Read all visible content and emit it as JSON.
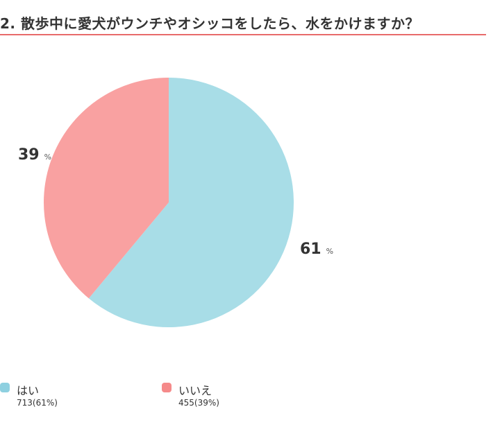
{
  "title": "2. 散歩中に愛犬がウンチやオシッコをしたら、水をかけますか？",
  "colors": {
    "accent_rule": "#e86a6a",
    "yes": "#a8dde7",
    "no": "#f9a1a1",
    "yes_swatch": "#8ed0e0",
    "no_swatch": "#f58a8a"
  },
  "labels": {
    "yes_pct": "61",
    "no_pct": "39",
    "pct_sign": "%"
  },
  "legend": [
    {
      "label": "はい",
      "value": "713(61%)"
    },
    {
      "label": "いいえ",
      "value": "455(39%)"
    }
  ],
  "chart_data": {
    "type": "pie",
    "title": "2. 散歩中に愛犬がウンチやオシッコをしたら、水をかけますか？",
    "categories": [
      "はい",
      "いいえ"
    ],
    "values": [
      713,
      455
    ],
    "percentages": [
      61,
      39
    ],
    "colors": [
      "#a8dde7",
      "#f9a1a1"
    ],
    "start_angle": "12 o'clock, clockwise",
    "legend_position": "bottom"
  }
}
